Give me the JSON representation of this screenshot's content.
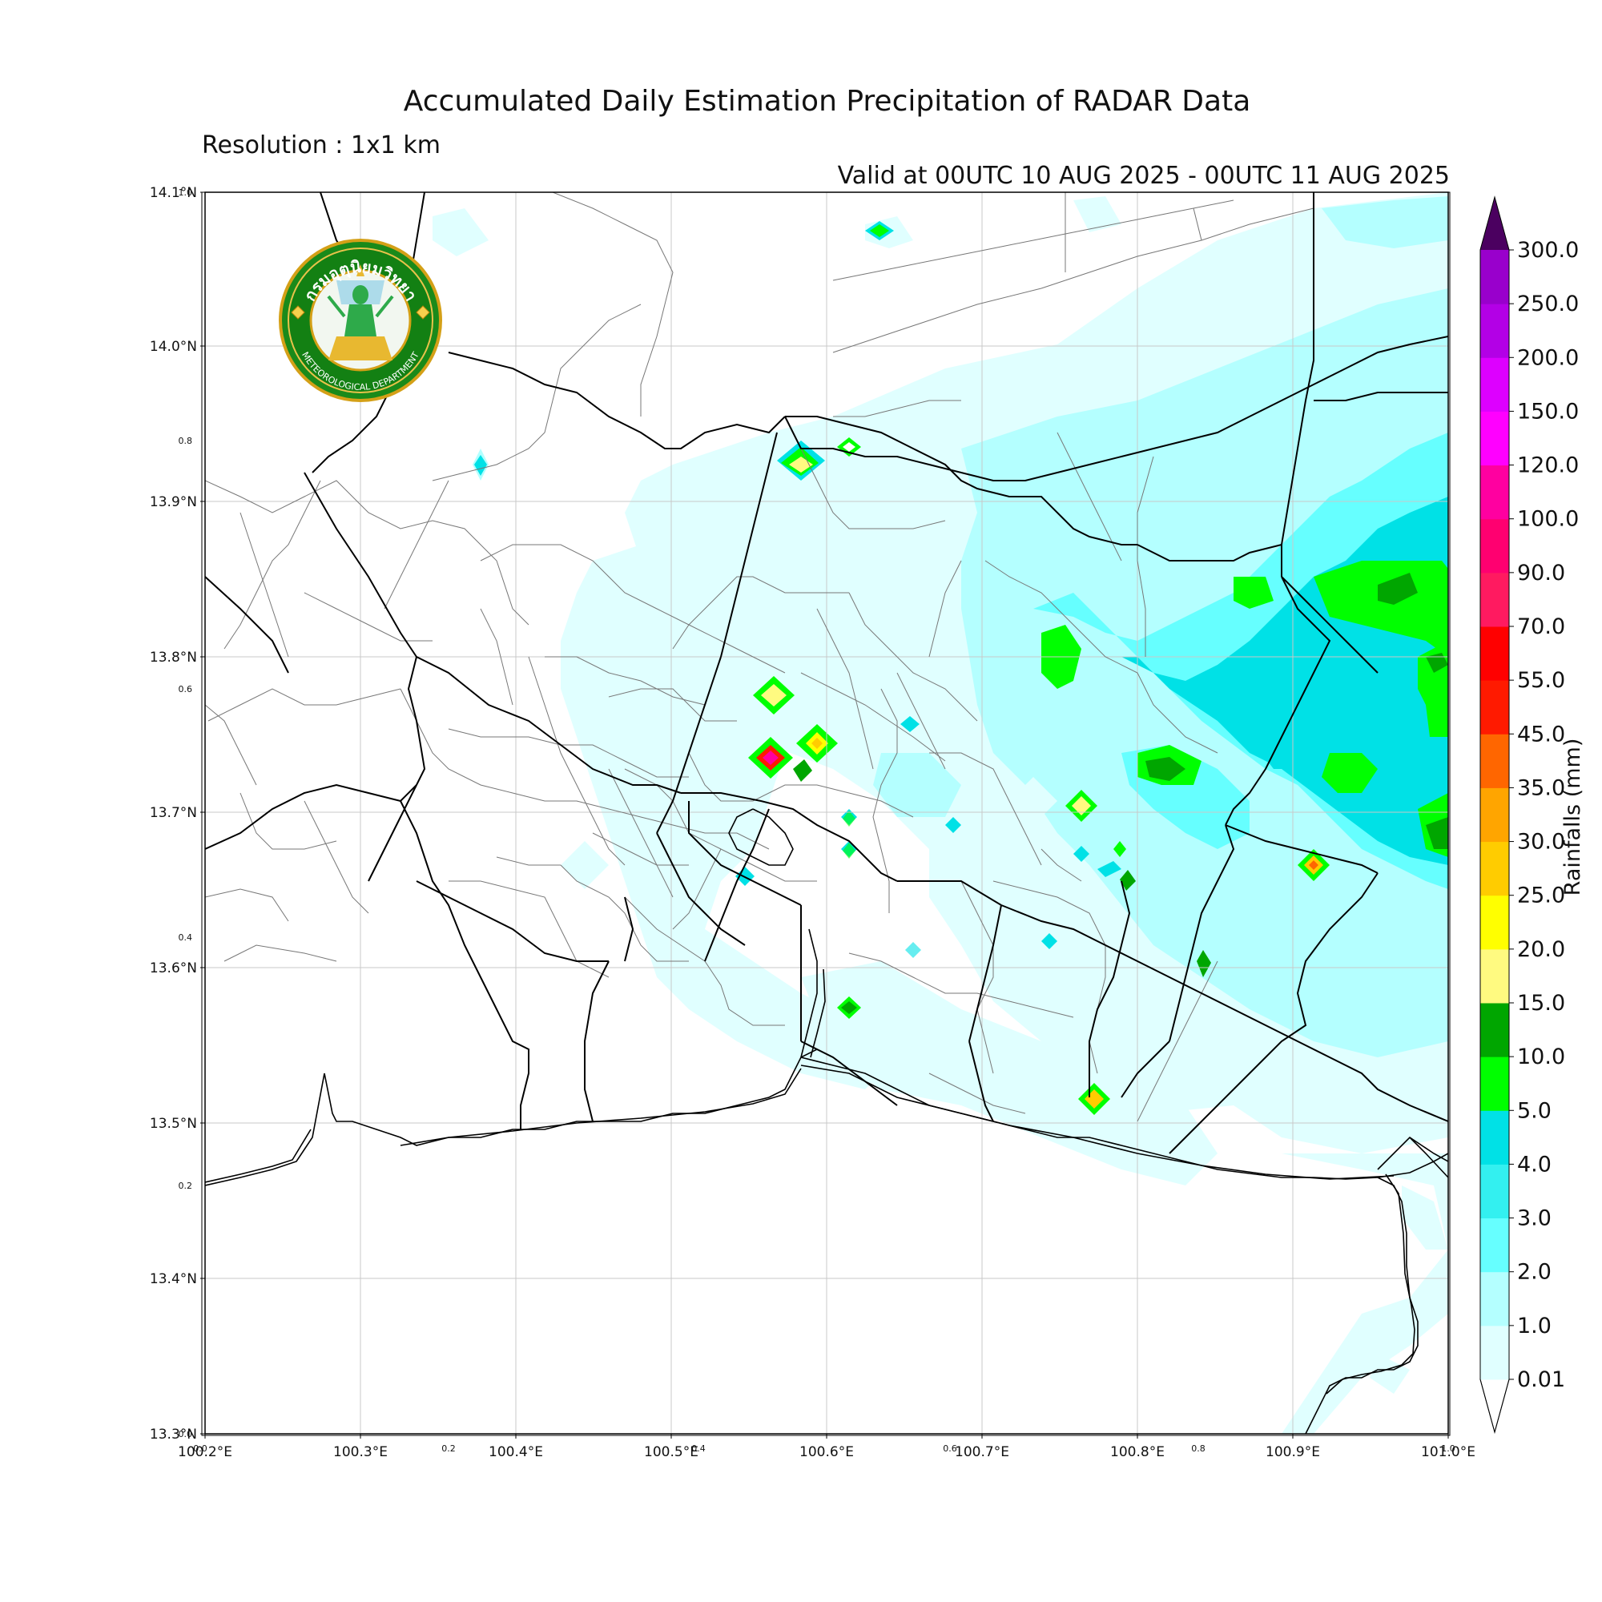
{
  "header": {
    "title": "Accumulated Daily Estimation Precipitation of RADAR Data",
    "resolution": "Resolution : 1x1 km",
    "valid": "Valid at 00UTC 10 AUG 2025 - 00UTC 11 AUG 2025"
  },
  "logo": {
    "text_top": "กรมอุตุนิยมวิทยา",
    "text_bottom": "METEOROLOGICAL DEPARTMENT",
    "icon": "tmd-emblem-icon"
  },
  "axes": {
    "lon_labels": [
      "100.2°E",
      "100.3°E",
      "100.4°E",
      "100.5°E",
      "100.6°E",
      "100.7°E",
      "100.8°E",
      "100.9°E",
      "101.0°E"
    ],
    "lat_labels": [
      "13.3°N",
      "13.4°N",
      "13.5°N",
      "13.6°N",
      "13.7°N",
      "13.8°N",
      "13.9°N",
      "14.0°N",
      "14.1°N"
    ],
    "frac_x_labels": [
      "0.0",
      "0.2",
      "0.4",
      "0.6",
      "0.8",
      "1.0"
    ],
    "frac_y_labels": [
      "0.0",
      "0.2",
      "0.4",
      "0.6",
      "0.8",
      "1.0"
    ]
  },
  "colorbar": {
    "title": "Rainfalls (mm)",
    "levels": [
      "0.01",
      "1.0",
      "2.0",
      "3.0",
      "4.0",
      "5.0",
      "10.0",
      "15.0",
      "20.0",
      "25.0",
      "30.0",
      "35.0",
      "45.0",
      "55.0",
      "70.0",
      "90.0",
      "100.0",
      "120.0",
      "150.0",
      "200.0",
      "250.0",
      "300.0"
    ],
    "colors": [
      "#e0ffff",
      "#b4ffff",
      "#66ffff",
      "#33f0f0",
      "#00e1e6",
      "#00ff00",
      "#00a600",
      "#fffa80",
      "#ffff00",
      "#ffcc00",
      "#ffa500",
      "#ff6600",
      "#ff1a00",
      "#ff0000",
      "#ff1a60",
      "#ff0070",
      "#ff00a0",
      "#ff00ff",
      "#dd00ff",
      "#b300e6",
      "#9900cc",
      "#7a00a8"
    ],
    "over_color": "#4b0060"
  },
  "chart_data": {
    "type": "heatmap",
    "title": "Accumulated Daily Estimation Precipitation of RADAR Data",
    "xlim": [
      100.2,
      101.0
    ],
    "ylim": [
      13.3,
      14.1
    ],
    "units": "mm",
    "field": "radar-estimated daily rainfall accumulation",
    "notable_cells": [
      {
        "lon": 100.56,
        "lat": 13.737,
        "value": 90.0
      },
      {
        "lon": 100.595,
        "lat": 13.745,
        "value": 20.0
      },
      {
        "lon": 100.562,
        "lat": 13.775,
        "value": 15.0
      },
      {
        "lon": 100.92,
        "lat": 13.665,
        "value": 25.0
      },
      {
        "lon": 100.773,
        "lat": 13.515,
        "value": 15.0
      },
      {
        "lon": 100.765,
        "lat": 13.705,
        "value": 10.0
      },
      {
        "lon": 100.592,
        "lat": 13.925,
        "value": 10.0
      },
      {
        "lon": 100.98,
        "lat": 13.855,
        "value": 5.0
      }
    ]
  }
}
